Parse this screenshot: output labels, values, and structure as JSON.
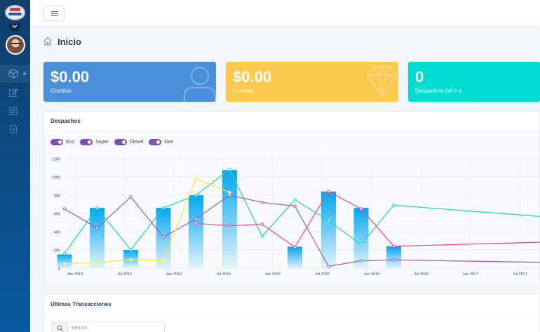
{
  "header": {
    "page_title": "Inicio"
  },
  "sidebar": {
    "items": [
      {
        "icon": "cube-icon",
        "active": true
      },
      {
        "icon": "edit-icon",
        "active": false
      },
      {
        "icon": "book-icon",
        "active": false
      },
      {
        "icon": "document-icon",
        "active": false
      }
    ]
  },
  "cards": [
    {
      "value": "$0.00",
      "label": "Creditos",
      "color": "#4a8fd9",
      "icon": "user-icon"
    },
    {
      "value": "$0.00",
      "label": "Contado",
      "color": "#fbc94b",
      "icon": "diamond-icon"
    },
    {
      "value": "0",
      "label": "Despachos del d a",
      "color": "#00dccf",
      "icon": ""
    }
  ],
  "chart_panel": {
    "title": "Despachos",
    "toggles": [
      "Eco",
      "Super",
      "Diesel",
      "Gas"
    ]
  },
  "transactions": {
    "title": "Ultimas Transacciones",
    "search_placeholder": "Search"
  },
  "chart_data": {
    "type": "bar",
    "x": [
      "Jan 2013",
      "Jul 2013",
      "Jan 2014",
      "Jul 2014",
      "Jan 2015",
      "Jul 2015",
      "Jan 2016",
      "Jul 2016",
      "Jan 2017",
      "Jul 2017"
    ],
    "ylim": [
      0,
      1200
    ],
    "yticks": [
      0,
      200,
      400,
      600,
      800,
      1000,
      1200
    ],
    "grid": true,
    "bars": {
      "color": "#00a6f0",
      "points": [
        {
          "x": 2013.0,
          "y": 150
        },
        {
          "x": 2013.33,
          "y": 660
        },
        {
          "x": 2013.67,
          "y": 200
        },
        {
          "x": 2014.0,
          "y": 660
        },
        {
          "x": 2014.33,
          "y": 800
        },
        {
          "x": 2014.67,
          "y": 1075
        },
        {
          "x": 2015.33,
          "y": 235
        },
        {
          "x": 2015.67,
          "y": 840
        },
        {
          "x": 2016.0,
          "y": 660
        },
        {
          "x": 2016.33,
          "y": 240
        }
      ]
    },
    "series": [
      {
        "name": "",
        "color": "#1fd3b5",
        "points": [
          [
            2013.0,
            160
          ],
          [
            2013.33,
            660
          ],
          [
            2013.67,
            200
          ],
          [
            2014.0,
            660
          ],
          [
            2014.33,
            800
          ],
          [
            2014.67,
            1080
          ],
          [
            2015.0,
            350
          ],
          [
            2015.33,
            750
          ],
          [
            2015.67,
            520
          ],
          [
            2016.0,
            260
          ],
          [
            2016.33,
            690
          ],
          [
            2018.0,
            550
          ]
        ]
      },
      {
        "name": "",
        "color": "#9b59b6",
        "points": [
          [
            2013.0,
            650
          ],
          [
            2013.33,
            440
          ],
          [
            2013.67,
            780
          ],
          [
            2014.0,
            340
          ],
          [
            2014.33,
            540
          ],
          [
            2014.67,
            800
          ],
          [
            2015.0,
            720
          ],
          [
            2015.33,
            680
          ],
          [
            2015.67,
            20
          ],
          [
            2016.0,
            80
          ],
          [
            2016.33,
            90
          ],
          [
            2018.0,
            60
          ]
        ]
      },
      {
        "name": "",
        "color": "#ff3e93",
        "points": [
          [
            2014.33,
            490
          ],
          [
            2014.67,
            465
          ],
          [
            2015.0,
            480
          ],
          [
            2015.33,
            230
          ],
          [
            2015.67,
            840
          ],
          [
            2016.0,
            650
          ],
          [
            2016.33,
            240
          ],
          [
            2018.0,
            290
          ]
        ]
      },
      {
        "name": "",
        "color": "#f4ee3a",
        "points": [
          [
            2013.0,
            50
          ],
          [
            2013.33,
            60
          ],
          [
            2013.67,
            95
          ],
          [
            2014.0,
            85
          ],
          [
            2014.33,
            980
          ],
          [
            2014.67,
            830
          ]
        ]
      }
    ]
  }
}
